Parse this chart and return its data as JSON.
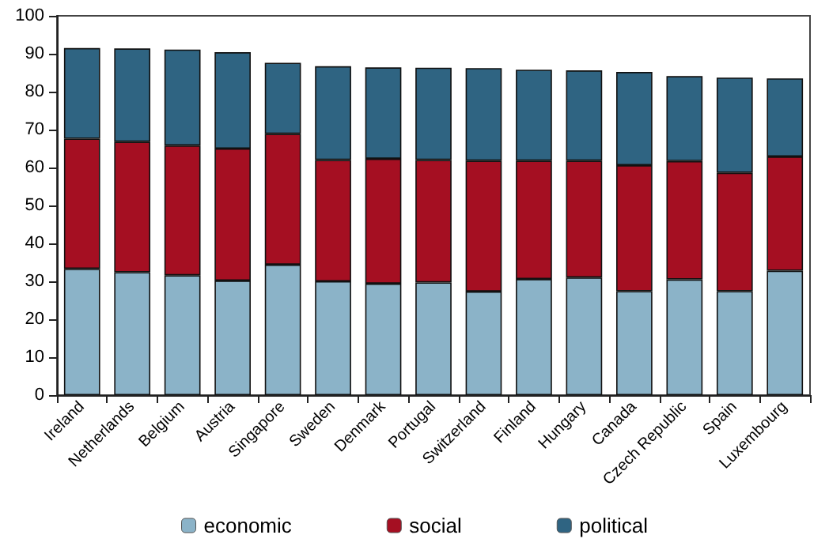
{
  "chart_data": {
    "type": "bar",
    "stacked": true,
    "categories": [
      "Ireland",
      "Netherlands",
      "Belgium",
      "Austria",
      "Singapore",
      "Sweden",
      "Denmark",
      "Portugal",
      "Switzerland",
      "Finland",
      "Hungary",
      "Canada",
      "Czech Republic",
      "Spain",
      "Luxembourg"
    ],
    "series": [
      {
        "name": "economic",
        "color": "#8bb3c8",
        "values": [
          33.3,
          32.4,
          31.6,
          30.2,
          34.4,
          30.0,
          29.4,
          29.7,
          27.3,
          30.6,
          31.0,
          27.4,
          30.5,
          27.4,
          32.8
        ]
      },
      {
        "name": "social",
        "color": "#a50f22",
        "values": [
          34.3,
          34.4,
          34.2,
          34.8,
          34.5,
          32.0,
          32.9,
          32.3,
          34.5,
          31.2,
          30.8,
          33.2,
          31.2,
          31.2,
          30.1
        ]
      },
      {
        "name": "political",
        "color": "#2f6482",
        "values": [
          23.9,
          24.6,
          25.3,
          25.4,
          18.7,
          24.7,
          24.1,
          24.3,
          24.4,
          24.0,
          23.8,
          24.6,
          22.4,
          25.1,
          20.6
        ]
      }
    ],
    "ylim": [
      0,
      100
    ],
    "yticks": [
      0,
      10,
      20,
      30,
      40,
      50,
      60,
      70,
      80,
      90,
      100
    ],
    "grid": false,
    "legend": "bottom"
  }
}
